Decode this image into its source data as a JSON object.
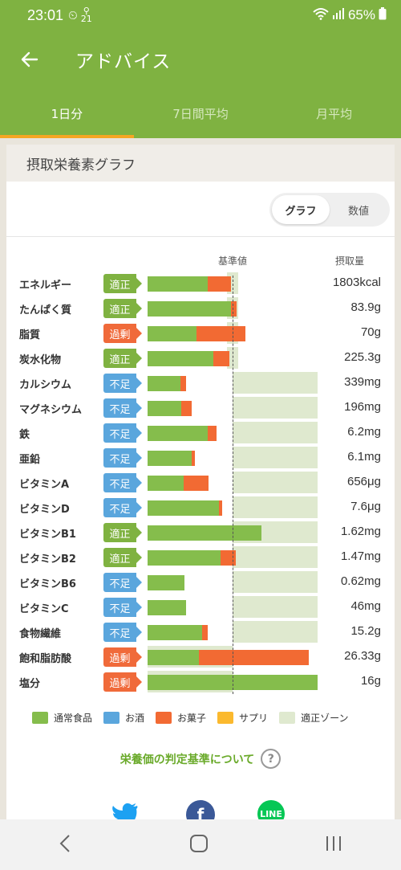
{
  "status": {
    "time": "23:01",
    "steps": "21",
    "battery": "65%"
  },
  "app": {
    "title": "アドバイス"
  },
  "tabs": [
    "1日分",
    "7日間平均",
    "月平均"
  ],
  "card": {
    "title": "摂取栄養素グラフ",
    "toggle": [
      "グラフ",
      "数値"
    ],
    "col_base": "基準値",
    "col_intake": "摂取量"
  },
  "nutrients": [
    {
      "name": "エネルギー",
      "status": "適正",
      "type": "ok",
      "food": 0.71,
      "snack": 0.27,
      "zone": [
        0.93,
        1.07
      ],
      "value": "1803kcal"
    },
    {
      "name": "たんぱく質",
      "status": "適正",
      "type": "ok",
      "food": 0.98,
      "snack": 0.07,
      "zone": [
        0.93,
        1.07
      ],
      "value": "83.9g"
    },
    {
      "name": "脂質",
      "status": "過剰",
      "type": "over",
      "food": 0.58,
      "snack": 0.57,
      "zone": [
        0.93,
        1.07
      ],
      "value": "70g"
    },
    {
      "name": "炭水化物",
      "status": "適正",
      "type": "ok",
      "food": 0.77,
      "snack": 0.19,
      "zone": [
        0.93,
        1.07
      ],
      "value": "225.3g"
    },
    {
      "name": "カルシウム",
      "status": "不足",
      "type": "low",
      "food": 0.39,
      "snack": 0.06,
      "zone": [
        1.0,
        2.0
      ],
      "value": "339mg"
    },
    {
      "name": "マグネシウム",
      "status": "不足",
      "type": "low",
      "food": 0.4,
      "snack": 0.12,
      "zone": [
        1.0,
        2.0
      ],
      "value": "196mg"
    },
    {
      "name": "鉄",
      "status": "不足",
      "type": "low",
      "food": 0.71,
      "snack": 0.1,
      "zone": [
        1.0,
        2.0
      ],
      "value": "6.2mg"
    },
    {
      "name": "亜鉛",
      "status": "不足",
      "type": "low",
      "food": 0.52,
      "snack": 0.04,
      "zone": [
        1.0,
        2.0
      ],
      "value": "6.1mg"
    },
    {
      "name": "ビタミンA",
      "status": "不足",
      "type": "low",
      "food": 0.42,
      "snack": 0.3,
      "zone": [
        1.0,
        2.0
      ],
      "value": "656μg"
    },
    {
      "name": "ビタミンD",
      "status": "不足",
      "type": "low",
      "food": 0.84,
      "snack": 0.04,
      "zone": [
        1.0,
        2.0
      ],
      "value": "7.6μg"
    },
    {
      "name": "ビタミンB1",
      "status": "適正",
      "type": "ok",
      "food": 1.34,
      "snack": 0.0,
      "zone": [
        1.0,
        2.0
      ],
      "value": "1.62mg"
    },
    {
      "name": "ビタミンB2",
      "status": "適正",
      "type": "ok",
      "food": 0.86,
      "snack": 0.18,
      "zone": [
        1.0,
        2.0
      ],
      "value": "1.47mg"
    },
    {
      "name": "ビタミンB6",
      "status": "不足",
      "type": "low",
      "food": 0.43,
      "snack": 0.0,
      "zone": [
        1.0,
        2.0
      ],
      "value": "0.62mg"
    },
    {
      "name": "ビタミンC",
      "status": "不足",
      "type": "low",
      "food": 0.45,
      "snack": 0.0,
      "zone": [
        1.0,
        2.0
      ],
      "value": "46mg"
    },
    {
      "name": "食物繊維",
      "status": "不足",
      "type": "low",
      "food": 0.64,
      "snack": 0.07,
      "zone": [
        1.0,
        2.0
      ],
      "value": "15.2g"
    },
    {
      "name": "飽和脂肪酸",
      "status": "過剰",
      "type": "over",
      "food": 0.6,
      "snack": 1.3,
      "zone": [
        0.0,
        1.0
      ],
      "value": "26.33g"
    },
    {
      "name": "塩分",
      "status": "過剰",
      "type": "over",
      "food": 2.0,
      "snack": 0.0,
      "zone": [
        0.0,
        1.0
      ],
      "value": "16g"
    }
  ],
  "legend": [
    {
      "label": "通常食品",
      "color": "#85bd4c"
    },
    {
      "label": "お酒",
      "color": "#5aa6dd"
    },
    {
      "label": "お菓子",
      "color": "#f26a33"
    },
    {
      "label": "サプリ",
      "color": "#fbb92e"
    },
    {
      "label": "適正ゾーン",
      "color": "#dfe9cf"
    }
  ],
  "criteria_link": "栄養価の判定基準について",
  "share": {
    "line": "LINE"
  }
}
